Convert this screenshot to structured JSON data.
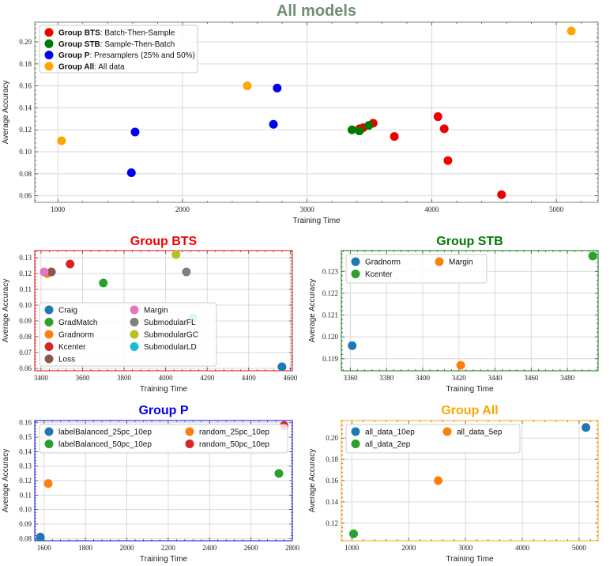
{
  "chart_data": [
    {
      "id": "all-models",
      "type": "scatter",
      "title": "All models",
      "title_color": "#6e8f72",
      "frame_color": "#6e8f72",
      "xlabel": "Training Time",
      "ylabel": "Average Accuracy",
      "xlim": [
        815,
        5335
      ],
      "ylim": [
        0.054,
        0.218
      ],
      "xticks": [
        1000,
        2000,
        3000,
        4000,
        5000
      ],
      "yticks": [
        0.06,
        0.08,
        0.1,
        0.12,
        0.14,
        0.16,
        0.18,
        0.2
      ],
      "ydecimals": 2,
      "legend": {
        "position": "top-left",
        "ncol": 1
      },
      "series": [
        {
          "bold": "Group BTS",
          "rest": ": Batch-Then-Sample",
          "color": "#ee0000",
          "points": [
            [
              3420,
              0.121
            ],
            [
              3450,
              0.122
            ],
            [
              3530,
              0.126
            ],
            [
              3700,
              0.114
            ],
            [
              4050,
              0.132
            ],
            [
              4100,
              0.121
            ],
            [
              4130,
              0.092
            ],
            [
              4560,
              0.061
            ]
          ]
        },
        {
          "bold": "Group STB",
          "rest": ": Sample-Then-Batch",
          "color": "#007a00",
          "points": [
            [
              3360,
              0.12
            ],
            [
              3420,
              0.119
            ],
            [
              3495,
              0.124
            ]
          ]
        },
        {
          "bold": "Group P",
          "rest": ": Presamplers (25% and 50%)",
          "color": "#0000ee",
          "points": [
            [
              1590,
              0.081
            ],
            [
              1620,
              0.118
            ],
            [
              2730,
              0.125
            ],
            [
              2760,
              0.158
            ]
          ]
        },
        {
          "bold": "Group All",
          "rest": ": All data",
          "color": "#ffa500",
          "points": [
            [
              1030,
              0.11
            ],
            [
              2520,
              0.16
            ],
            [
              5120,
              0.21
            ]
          ]
        }
      ]
    },
    {
      "id": "group-bts",
      "type": "scatter",
      "title": "Group BTS",
      "title_color": "#ee0000",
      "frame_color": "#ee0000",
      "xlabel": "Training Time",
      "ylabel": "Average Accuracy",
      "xlim": [
        3370,
        4610
      ],
      "ylim": [
        0.0585,
        0.1345
      ],
      "xticks": [
        3400,
        3600,
        3800,
        4000,
        4200,
        4400,
        4600
      ],
      "yticks": [
        0.06,
        0.07,
        0.08,
        0.09,
        0.1,
        0.11,
        0.12,
        0.13
      ],
      "ydecimals": 2,
      "legend": {
        "position": "bottom-left",
        "ncol": 2
      },
      "series": [
        {
          "name": "Craig",
          "color": "#1f77b4",
          "points": [
            [
              4560,
              0.061
            ]
          ]
        },
        {
          "name": "GradMatch",
          "color": "#2ca02c",
          "points": [
            [
              3700,
              0.114
            ]
          ]
        },
        {
          "name": "Gradnorm",
          "color": "#ff7f0e",
          "points": [
            [
              3430,
              0.12
            ]
          ]
        },
        {
          "name": "Kcenter",
          "color": "#d62728",
          "points": [
            [
              3540,
              0.126
            ]
          ]
        },
        {
          "name": "Loss",
          "color": "#8c564b",
          "points": [
            [
              3450,
              0.121
            ]
          ]
        },
        {
          "name": "Margin",
          "color": "#e377c2",
          "points": [
            [
              3415,
              0.121
            ]
          ]
        },
        {
          "name": "SubmodularFL",
          "color": "#7f7f7f",
          "points": [
            [
              4100,
              0.121
            ]
          ]
        },
        {
          "name": "SubmodularGC",
          "color": "#bcbd22",
          "points": [
            [
              4050,
              0.132
            ]
          ]
        },
        {
          "name": "SubmodularLD",
          "color": "#17becf",
          "points": [
            [
              4130,
              0.092
            ]
          ]
        }
      ]
    },
    {
      "id": "group-stb",
      "type": "scatter",
      "title": "Group STB",
      "title_color": "#007a00",
      "frame_color": "#007a00",
      "xlabel": "Training Time",
      "ylabel": "Average Accuracy",
      "xlim": [
        3355,
        3497
      ],
      "ylim": [
        0.11845,
        0.12395
      ],
      "xticks": [
        3360,
        3380,
        3400,
        3420,
        3440,
        3460,
        3480
      ],
      "yticks": [
        0.119,
        0.12,
        0.121,
        0.122,
        0.123
      ],
      "ydecimals": 3,
      "legend": {
        "position": "top-left",
        "ncol": 2
      },
      "series": [
        {
          "name": "Gradnorm",
          "color": "#1f77b4",
          "points": [
            [
              3361,
              0.1196
            ]
          ]
        },
        {
          "name": "Kcenter",
          "color": "#2ca02c",
          "points": [
            [
              3494,
              0.1237
            ]
          ]
        },
        {
          "name": "Margin",
          "color": "#ff7f0e",
          "points": [
            [
              3421,
              0.1187
            ]
          ]
        }
      ]
    },
    {
      "id": "group-p",
      "type": "scatter",
      "title": "Group P",
      "title_color": "#0000ee",
      "frame_color": "#0000ee",
      "xlabel": "Training Time",
      "ylabel": "Average Accuracy",
      "xlim": [
        1555,
        2800
      ],
      "ylim": [
        0.0785,
        0.1615
      ],
      "xticks": [
        1600,
        1800,
        2000,
        2200,
        2400,
        2600,
        2800
      ],
      "yticks": [
        0.08,
        0.09,
        0.1,
        0.11,
        0.12,
        0.13,
        0.14,
        0.15,
        0.16
      ],
      "ydecimals": 2,
      "legend": {
        "position": "top-left",
        "ncol": 2
      },
      "series": [
        {
          "name": "labelBalanced_25pc_10ep",
          "color": "#1f77b4",
          "points": [
            [
              1582,
              0.081
            ]
          ]
        },
        {
          "name": "labelBalanced_50pc_10ep",
          "color": "#2ca02c",
          "points": [
            [
              2735,
              0.125
            ]
          ]
        },
        {
          "name": "random_25pc_10ep",
          "color": "#ff7f0e",
          "points": [
            [
              1620,
              0.118
            ]
          ]
        },
        {
          "name": "random_50pc_10ep",
          "color": "#d62728",
          "points": [
            [
              2760,
              0.158
            ]
          ]
        }
      ]
    },
    {
      "id": "group-all",
      "type": "scatter",
      "title": "Group All",
      "title_color": "#ffa500",
      "frame_color": "#ffa500",
      "xlabel": "Training Time",
      "ylabel": "Average Accuracy",
      "xlim": [
        815,
        5335
      ],
      "ylim": [
        0.1035,
        0.2165
      ],
      "xticks": [
        1000,
        2000,
        3000,
        4000,
        5000
      ],
      "yticks": [
        0.12,
        0.14,
        0.16,
        0.18,
        0.2
      ],
      "ydecimals": 2,
      "legend": {
        "position": "top-left",
        "ncol": 2
      },
      "series": [
        {
          "name": "all_data_10ep",
          "color": "#1f77b4",
          "points": [
            [
              5120,
              0.21
            ]
          ]
        },
        {
          "name": "all_data_2ep",
          "color": "#2ca02c",
          "points": [
            [
              1030,
              0.11
            ]
          ]
        },
        {
          "name": "all_data_5ep",
          "color": "#ff7f0e",
          "points": [
            [
              2520,
              0.16
            ]
          ]
        }
      ]
    }
  ]
}
